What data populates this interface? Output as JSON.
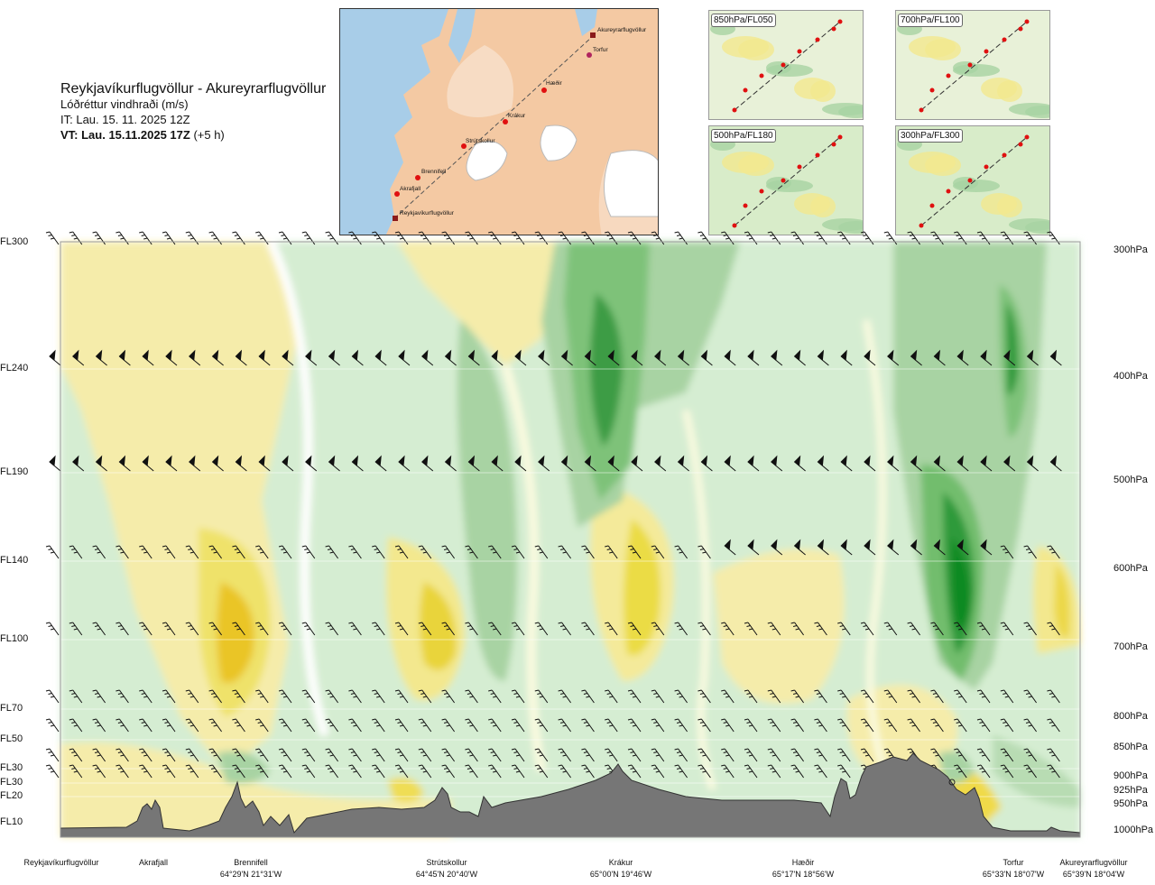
{
  "header": {
    "route": "Reykjavíkurflugvöllur - Akureyrarflugvöllur",
    "parameter": "Lóðréttur vindhraði (m/s)",
    "issue_time": "IT: Lau. 15. 11. 2025 12Z",
    "valid_time": "VT: Lau. 15.11.2025 17Z",
    "valid_offset": "(+5 h)"
  },
  "map": {
    "waypoints": [
      "Akureyrarflugvöllur",
      "Torfur",
      "Hæðir",
      "Krákur",
      "Strútskollur",
      "Brennifell",
      "Akrafjall",
      "Reykjavíkurflugvöllur"
    ]
  },
  "thumbnails": [
    "850hPa/FL050",
    "700hPa/FL100",
    "500hPa/FL180",
    "300hPa/FL300"
  ],
  "colors": {
    "terrain": "#767676",
    "green_dark": "#1d8a2e",
    "green_light": "#d5edd2",
    "yellow": "#f2e88f",
    "yellow_dark": "#e7c31a"
  },
  "chart_data": {
    "type": "heatmap",
    "title": "Lóðréttur vindhraði (m/s)",
    "flight_levels": [
      "FL300",
      "FL240",
      "FL190",
      "FL140",
      "FL100",
      "FL70",
      "FL50",
      "FL30",
      "FL30",
      "FL20",
      "FL10"
    ],
    "pressure_levels": [
      "300hPa",
      "400hPa",
      "500hPa",
      "600hPa",
      "700hPa",
      "800hPa",
      "850hPa",
      "900hPa",
      "925hPa",
      "950hPa",
      "1000hPa"
    ],
    "stations": [
      {
        "name": "Reykjavíkurflugvöllur",
        "coord": ""
      },
      {
        "name": "Akrafjall",
        "coord": ""
      },
      {
        "name": "Brennifell",
        "coord": "64°29'N 21°31'W"
      },
      {
        "name": "Strútskollur",
        "coord": "64°45'N 20°40'W"
      },
      {
        "name": "Krákur",
        "coord": "65°00'N 19°46'W"
      },
      {
        "name": "Hæðir",
        "coord": "65°17'N 18°56'W"
      },
      {
        "name": "Torfur",
        "coord": "65°33'N 18°07'W"
      },
      {
        "name": "Akureyrarflugvöllur",
        "coord": "65°39'N 18°04'W"
      }
    ],
    "features": [
      {
        "kind": "updraft",
        "near": "Krákur",
        "level": "FL240",
        "strength": "strong"
      },
      {
        "kind": "updraft",
        "near": "Torfur",
        "level": "FL140",
        "strength": "strong"
      },
      {
        "kind": "downdraft",
        "near": "Brennifell",
        "level": "FL100",
        "strength": "moderate"
      },
      {
        "kind": "downdraft",
        "near": "Strútskollur",
        "level": "FL100",
        "strength": "moderate"
      }
    ]
  }
}
